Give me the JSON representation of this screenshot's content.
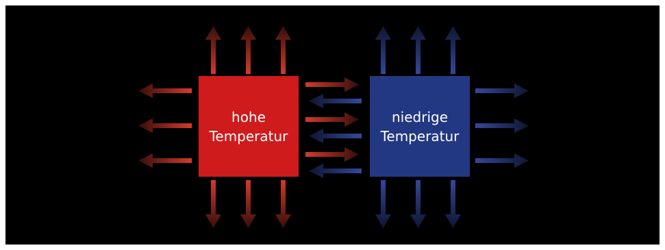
{
  "diagram": {
    "colors": {
      "background": "#000000",
      "hot": "#cf1b1b",
      "cold": "#233883",
      "hot_arrow": "#d53a2c",
      "cold_arrow": "#34479b"
    },
    "boxes": {
      "hot": {
        "line1": "hohe",
        "line2": "Temperatur"
      },
      "cold": {
        "line1": "niedrige",
        "line2": "Temperatur"
      }
    }
  }
}
